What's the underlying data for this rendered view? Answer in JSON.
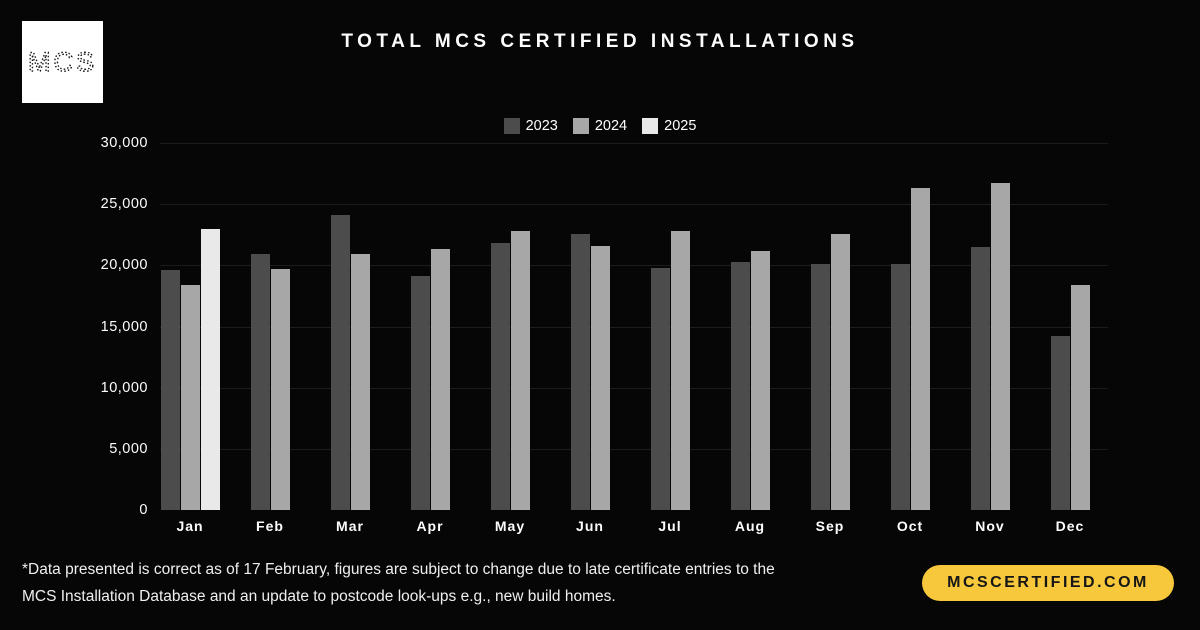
{
  "logo": {
    "text": "MCS"
  },
  "header": {
    "title": "TOTAL MCS CERTIFIED INSTALLATIONS"
  },
  "chart_data": {
    "type": "bar",
    "title": "TOTAL MCS CERTIFIED INSTALLATIONS",
    "categories": [
      "Jan",
      "Feb",
      "Mar",
      "Apr",
      "May",
      "Jun",
      "Jul",
      "Aug",
      "Sep",
      "Oct",
      "Nov",
      "Dec"
    ],
    "series": [
      {
        "name": "2023",
        "color": "#4C4C4C",
        "values": [
          19600,
          20900,
          24100,
          19100,
          21800,
          22600,
          19800,
          20300,
          20100,
          20100,
          21500,
          14200
        ]
      },
      {
        "name": "2024",
        "color": "#A7A7A7",
        "values": [
          18400,
          19700,
          20900,
          21300,
          22800,
          21600,
          22800,
          21200,
          22600,
          26300,
          26700,
          18400
        ]
      },
      {
        "name": "2025",
        "color": "#E9E9E9",
        "values": [
          23000,
          null,
          null,
          null,
          null,
          null,
          null,
          null,
          null,
          null,
          null,
          null
        ]
      }
    ],
    "ylim": [
      0,
      30000
    ],
    "yticks": [
      {
        "v": 0,
        "label": "0"
      },
      {
        "v": 5000,
        "label": "5,000"
      },
      {
        "v": 10000,
        "label": "10,000"
      },
      {
        "v": 15000,
        "label": "15,000"
      },
      {
        "v": 20000,
        "label": "20,000"
      },
      {
        "v": 25000,
        "label": "25,000"
      },
      {
        "v": 30000,
        "label": "30,000"
      }
    ],
    "grid": true,
    "legend_position": "top-center"
  },
  "footnote": {
    "line1": "*Data presented is correct as of 17 February, figures are subject to change due to late certificate entries to the",
    "line2": "MCS Installation Database and an update to postcode look-ups e.g., new build homes."
  },
  "badge": {
    "label": "MCSCERTIFIED.COM",
    "bg": "#F7C83C"
  },
  "colors": {
    "background": "#060606",
    "text": "#FFFFFF",
    "gridline": "#1C1C1C"
  }
}
